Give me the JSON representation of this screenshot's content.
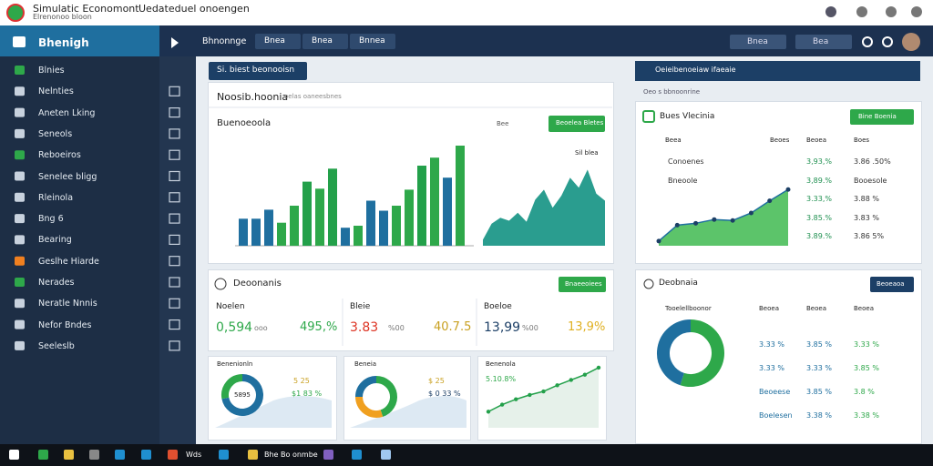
{
  "header": {
    "title": "Simulatic Economont",
    "status": "Uedateduel onoengen",
    "subtitle": "Elrenonoo bloon"
  },
  "sidebar": {
    "title": "Bhenigh",
    "items": [
      "Blnies",
      "Nelnties",
      "Aneten Lking",
      "Seneols",
      "Reboeiros",
      "Senelee bligg",
      "Rleinola",
      "Bng 6",
      "Bearing",
      "Geslhe Hiarde",
      "Nerades",
      "Neratle Nnnis",
      "Nefor Bndes",
      "Seeleslb"
    ]
  },
  "nav": {
    "section": "Bhnonnge",
    "tabs": [
      "Bnea",
      "Bnea",
      "Bnnea"
    ],
    "search": [
      "Bnea",
      "Bea"
    ]
  },
  "main": {
    "button": "Si. biest beonooisn",
    "card_title": "Noosib.hoonia",
    "card_subtitle": "oelas oaneesbnes",
    "chart_title": "Buenoeoola",
    "search": "Bee",
    "action": "Beoelea Bletes",
    "legend": "Sil blea",
    "bar_chart": {
      "type": "bar",
      "values": [
        27,
        27,
        36,
        23,
        40,
        64,
        57,
        77,
        18,
        20,
        45,
        35,
        40,
        56,
        80,
        88,
        68,
        100
      ],
      "colors": [
        "#1f6f9f",
        "#1f6f9f",
        "#1f6f9f",
        "#2ea84a",
        "#2ea84a",
        "#23a04a",
        "#2ea84a",
        "#23a04a",
        "#1f6f9f",
        "#2ea84a",
        "#1f6f9f",
        "#1f6f9f",
        "#2ea84a",
        "#2ea84a",
        "#23a04a",
        "#2ea84a",
        "#1f6f9f",
        "#2ea84a"
      ],
      "ylim": [
        0,
        100
      ]
    },
    "area_chart": {
      "type": "area",
      "values": [
        6,
        22,
        28,
        25,
        33,
        24,
        46,
        56,
        38,
        50,
        68,
        58,
        76,
        52,
        45
      ],
      "color": "#2a9d8f",
      "ylim": [
        0,
        100
      ]
    }
  },
  "kpi": {
    "title": "Deoonanis",
    "action": "Bnaeeoiees",
    "items": [
      {
        "label": "Noelen",
        "value": "0,594",
        "unit": "ooo",
        "change": "495,%"
      },
      {
        "label": "Bleie",
        "value": "3.83",
        "unit": "%00",
        "change": "40.7.5"
      },
      {
        "label": "Boeloe",
        "value": "13,99",
        "unit": "%00",
        "change": "13,9%"
      }
    ]
  },
  "mini": [
    {
      "title": "Benenionln",
      "center": "5895",
      "labels": [
        "5 25",
        "$1 83 %"
      ],
      "donut": {
        "type": "pie",
        "values": [
          72,
          28
        ],
        "colors": [
          "#1f6f9f",
          "#2ea84a"
        ]
      }
    },
    {
      "title": "Beneia",
      "labels": [
        "$ 25",
        "$ 0 33 %"
      ],
      "donut": {
        "type": "pie",
        "values": [
          45,
          30,
          25
        ],
        "colors": [
          "#2ea84a",
          "#f0a020",
          "#1f6f9f"
        ]
      }
    },
    {
      "title": "Benenola",
      "labels": [
        "5.10.8%"
      ],
      "line": {
        "type": "line",
        "values": [
          8,
          16,
          22,
          27,
          31,
          38,
          44,
          50,
          58
        ],
        "color": "#23a04a",
        "ylim": [
          0,
          60
        ]
      }
    }
  ],
  "right": {
    "header": "Oeieibenoeiaw ifaeaie",
    "subheader": "Oeo s bbnoonrine",
    "card1": {
      "title": "Bues Vlecinia",
      "action": "Bine Boenia",
      "columns": [
        "Beea",
        "Beoes",
        "Beoea",
        "Boes"
      ],
      "rows": [
        [
          "Conoenes",
          "3,93,%",
          "3.86 .50%"
        ],
        [
          "Bneoole",
          "3,89.%",
          "Booesole"
        ],
        [
          "",
          "3.33,%",
          "3.88 %"
        ],
        [
          "",
          "3.85.%",
          "3.83 %"
        ],
        [
          "",
          "3.89.%",
          "3.86 5%"
        ]
      ],
      "line": {
        "type": "line",
        "values": [
          5,
          22,
          24,
          28,
          27,
          35,
          48,
          60
        ],
        "color": "#23a04a",
        "ylim": [
          0,
          70
        ]
      }
    },
    "card2": {
      "title": "Deobnaia",
      "action": "Beoeaoa",
      "subtitle": "Tooelellboonor",
      "columns": [
        "Beoea",
        "Beoea",
        "Beoea"
      ],
      "rows": [
        [
          "3.33 %",
          "3.85 %",
          "3.33 %"
        ],
        [
          "3.33 %",
          "3.33 %",
          "3.85 %"
        ],
        [
          "Beoeese",
          "3.85 %",
          "3.8 %"
        ],
        [
          "Boelesen",
          "3.38 %",
          "3.38 %"
        ]
      ],
      "donut": {
        "type": "pie",
        "values": [
          55,
          45
        ],
        "colors": [
          "#2ea84a",
          "#1f6f9f"
        ]
      }
    }
  },
  "taskbar": {
    "items": [
      "Wds",
      "Bhe Bo onmbe"
    ]
  }
}
